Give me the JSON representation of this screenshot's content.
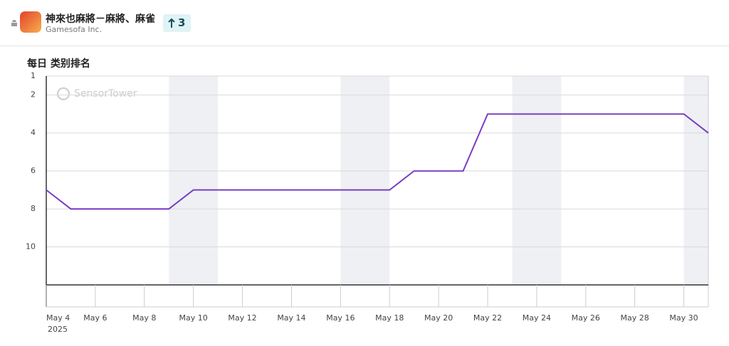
{
  "header": {
    "app_name": "神來也麻將－麻將、麻雀",
    "publisher": "Gamesofa Inc.",
    "rank_change": 3
  },
  "chart_data": {
    "type": "line",
    "title": "每日 类别排名",
    "watermark": "SensorTower",
    "year_label": "2025",
    "categories": [
      "May 4",
      null,
      "May 6",
      null,
      "May 8",
      null,
      "May 10",
      null,
      "May 12",
      null,
      "May 14",
      null,
      "May 16",
      null,
      "May 18",
      null,
      "May 20",
      null,
      "May 22",
      null,
      "May 24",
      null,
      "May 26",
      null,
      "May 28",
      null,
      "May 30",
      null
    ],
    "values": [
      7,
      8,
      8,
      8,
      8,
      8,
      7,
      7,
      7,
      7,
      7,
      7,
      7,
      7,
      7,
      6,
      6,
      6,
      3,
      3,
      3,
      3,
      3,
      3,
      3,
      3,
      3,
      4
    ],
    "color": "#7a3cc3",
    "ylim": [
      1,
      12
    ],
    "y_inverted": true,
    "yticks": [
      1,
      2,
      4,
      6,
      8,
      10
    ],
    "grid": true
  }
}
